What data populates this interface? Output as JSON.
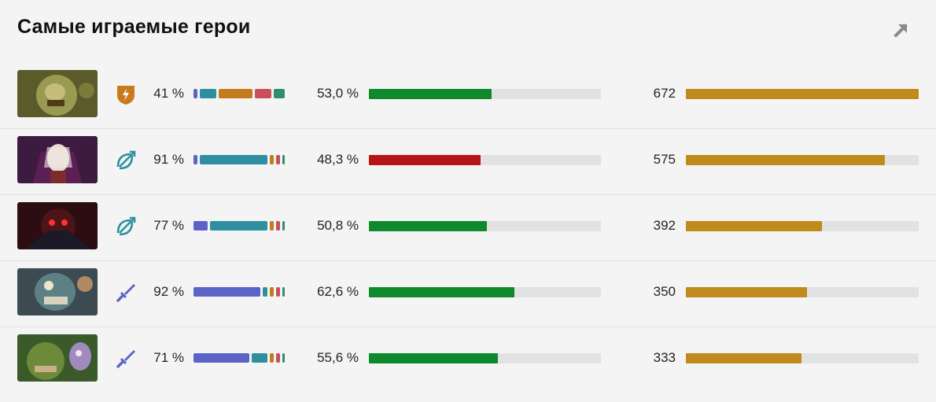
{
  "title": "Самые играемые герои",
  "colors": {
    "win_good": "#0e8a2c",
    "win_bad": "#b71515",
    "matches": "#c08a1c",
    "track": "#e2e2e2",
    "lane_colors": [
      "#5b63c9",
      "#2e8fa0",
      "#c27c1b",
      "#c9505a",
      "#2f8f6b"
    ]
  },
  "max_matches": 672,
  "heroes": [
    {
      "portrait_icon": "pudge-portrait-icon",
      "role_icon": "shield-bolt-icon",
      "lane_pct": "41 %",
      "win_rate_text": "53,0 %",
      "win_rate": 53.0,
      "matches_text": "672",
      "matches": 672,
      "lanes": [
        0.04,
        0.18,
        0.38,
        0.18,
        0.12
      ]
    },
    {
      "portrait_icon": "invoker-portrait-icon",
      "role_icon": "bow-icon",
      "lane_pct": "91 %",
      "win_rate_text": "48,3 %",
      "win_rate": 48.3,
      "matches_text": "575",
      "matches": 575,
      "lanes": [
        0.04,
        0.72,
        0.04,
        0.04,
        0.02
      ]
    },
    {
      "portrait_icon": "shadow-fiend-portrait-icon",
      "role_icon": "bow-icon",
      "lane_pct": "77 %",
      "win_rate_text": "50,8 %",
      "win_rate": 50.8,
      "matches_text": "392",
      "matches": 392,
      "lanes": [
        0.15,
        0.6,
        0.04,
        0.04,
        0.02
      ]
    },
    {
      "portrait_icon": "lifestealer-portrait-icon",
      "role_icon": "sword-icon",
      "lane_pct": "92 %",
      "win_rate_text": "62,6 %",
      "win_rate": 62.6,
      "matches_text": "350",
      "matches": 350,
      "lanes": [
        0.7,
        0.05,
        0.04,
        0.04,
        0.02
      ]
    },
    {
      "portrait_icon": "ogre-dazzle-portrait-icon",
      "role_icon": "sword-icon",
      "lane_pct": "71 %",
      "win_rate_text": "55,6 %",
      "win_rate": 55.6,
      "matches_text": "333",
      "matches": 333,
      "lanes": [
        0.58,
        0.16,
        0.04,
        0.04,
        0.02
      ]
    }
  ]
}
